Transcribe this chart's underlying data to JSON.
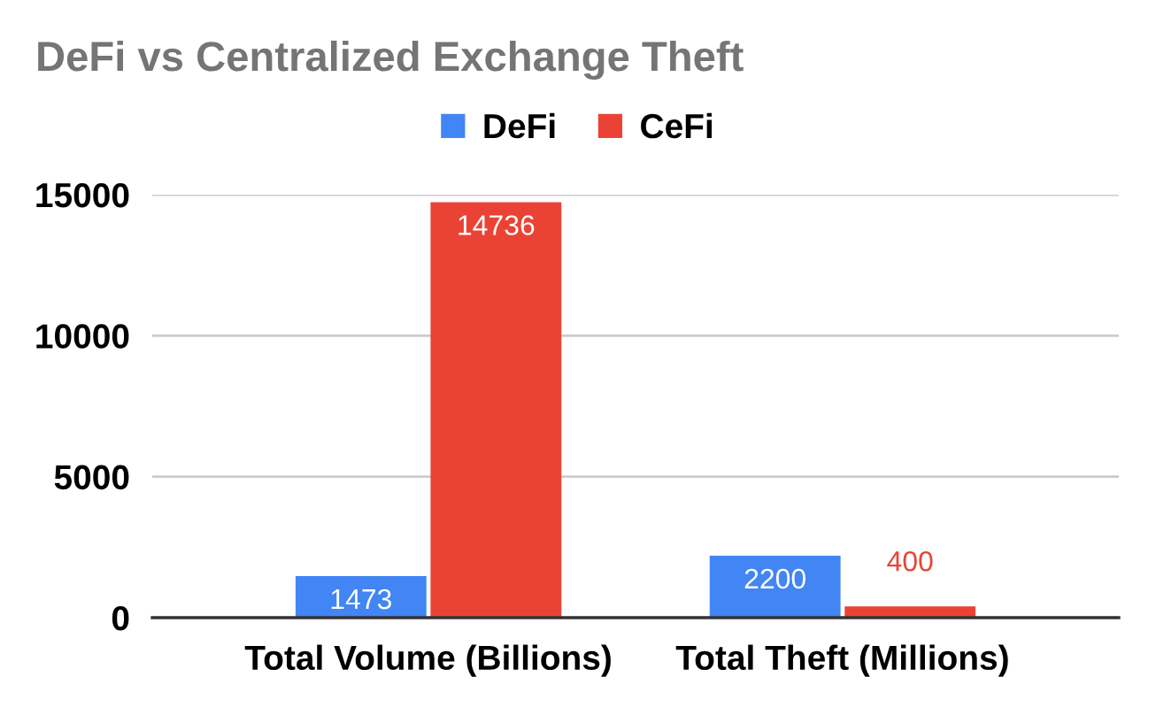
{
  "chart_data": {
    "type": "bar",
    "title": "DeFi vs Centralized Exchange Theft",
    "categories": [
      "Total Volume (Billions)",
      "Total Theft (Millions)"
    ],
    "series": [
      {
        "name": "DeFi",
        "color": "#4285f4",
        "values": [
          1473,
          2200
        ]
      },
      {
        "name": "CeFi",
        "color": "#ea4335",
        "values": [
          14736,
          400
        ]
      }
    ],
    "ylim": [
      0,
      15000
    ],
    "yticks": [
      0,
      5000,
      10000,
      15000
    ],
    "grid": "y",
    "legend": "top",
    "data_labels": true
  }
}
